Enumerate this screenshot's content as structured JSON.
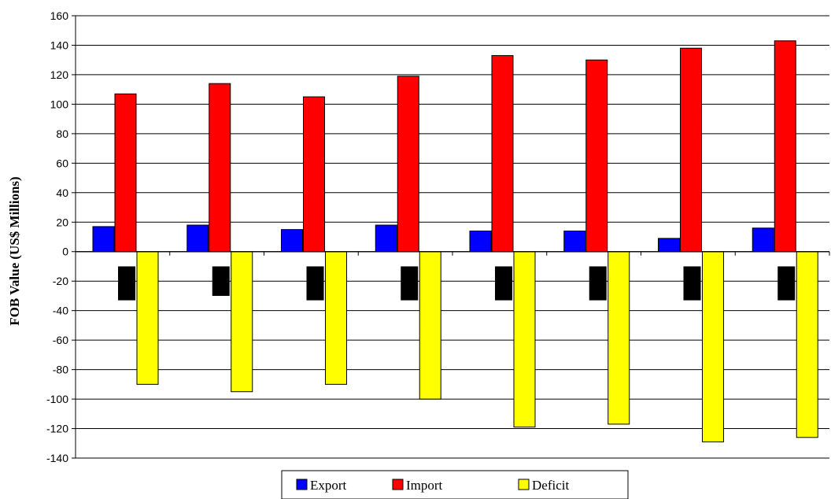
{
  "chart_data": {
    "type": "bar",
    "title": "",
    "xlabel": "",
    "ylabel": "FOB Value (US$ Millions)",
    "ylim": [
      -140,
      160
    ],
    "yticks": [
      160,
      140,
      120,
      100,
      80,
      60,
      40,
      20,
      0,
      -20,
      -40,
      -60,
      -80,
      -100,
      -120,
      -140
    ],
    "ytick_labels": [
      "160",
      "140",
      "120",
      "100",
      "80",
      "60",
      "40",
      "20",
      "0",
      "-20",
      "-40",
      "-60",
      "-80",
      "-100",
      "-120",
      "-140"
    ],
    "grid": true,
    "legend_position": "bottom-center",
    "categories": [
      "",
      "",
      "",
      "",
      "",
      "",
      "",
      ""
    ],
    "series": [
      {
        "name": "Export",
        "color": "#0000ff",
        "values": [
          17,
          18,
          15,
          18,
          14,
          14,
          9,
          16
        ]
      },
      {
        "name": "Import",
        "color": "#ff0000",
        "values": [
          107,
          114,
          105,
          119,
          133,
          130,
          138,
          143
        ]
      },
      {
        "name": "Deficit",
        "color": "#ffff00",
        "values": [
          -90,
          -95,
          -90,
          -100,
          -119,
          -117,
          -129,
          -126
        ]
      }
    ],
    "annotation_boxes": {
      "color": "#000000",
      "values": [
        [
          -10,
          -33
        ],
        [
          -10,
          -30
        ],
        [
          -10,
          -33
        ],
        [
          -10,
          -33
        ],
        [
          -10,
          -33
        ],
        [
          -10,
          -33
        ],
        [
          -10,
          -33
        ],
        [
          -10,
          -33
        ]
      ]
    }
  }
}
